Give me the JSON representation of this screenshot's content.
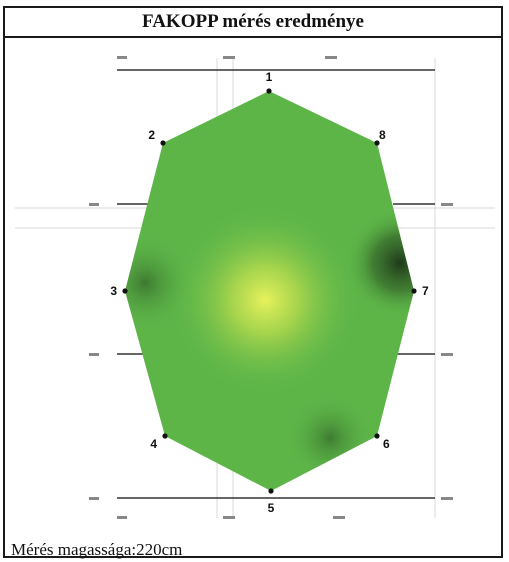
{
  "title": "FAKOPP mérés eredménye",
  "caption": "Mérés magassága:220cm",
  "colors": {
    "border": "#1a1a1a",
    "fill_base": "#5fb84a",
    "fill_highlight": "#e6f05a",
    "fill_dark": "#1f3a1a",
    "axis": "#333333"
  },
  "sensors": [
    {
      "label": "1"
    },
    {
      "label": "2"
    },
    {
      "label": "3"
    },
    {
      "label": "4"
    },
    {
      "label": "5"
    },
    {
      "label": "6"
    },
    {
      "label": "7"
    },
    {
      "label": "8"
    }
  ]
}
